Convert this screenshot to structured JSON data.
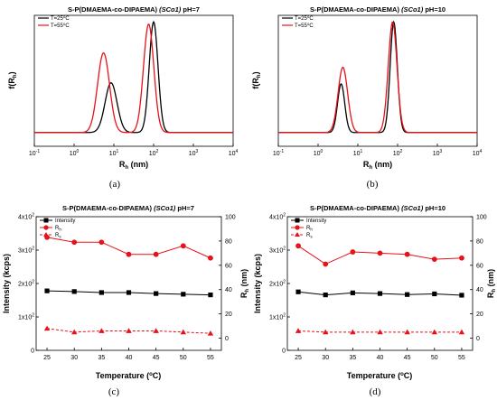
{
  "colors": {
    "black": "#000000",
    "red": "#e8111a"
  },
  "captions": [
    "(a)",
    "(b)",
    "(c)",
    "(d)"
  ],
  "chart_data": [
    {
      "type": "line",
      "title_prefix": "S-P(DMAEMA-co-DIPAEMA) ",
      "title_italic": "(SCo1)",
      "title_suffix": " pH=7",
      "xlabel": "R",
      "xlabel_sub": "h",
      "xlabel_unit": " (nm)",
      "ylabel": "f(R",
      "ylabel_sub": "h",
      "ylabel_end": ")",
      "x_scale": "log",
      "xlim": [
        0.1,
        10000
      ],
      "x_ticks": [
        {
          "v": 0.1,
          "b": "10",
          "e": "-1"
        },
        {
          "v": 1,
          "b": "10",
          "e": "0"
        },
        {
          "v": 10,
          "b": "10",
          "e": "1"
        },
        {
          "v": 100,
          "b": "10",
          "e": "2"
        },
        {
          "v": 1000,
          "b": "10",
          "e": "3"
        },
        {
          "v": 10000,
          "b": "10",
          "e": "4"
        }
      ],
      "y_ticks_shown": false,
      "legend": "top-left",
      "series": [
        {
          "name": "T=25",
          "name_sup": "o",
          "name_end": "C",
          "color": "#000000",
          "peaks": [
            {
              "center": 8.5,
              "height": 0.45,
              "width": 0.15
            },
            {
              "center": 100,
              "height": 1.0,
              "width": 0.11
            }
          ]
        },
        {
          "name": "T=55",
          "name_sup": "o",
          "name_end": "C",
          "color": "#e8111a",
          "peaks": [
            {
              "center": 5.5,
              "height": 0.72,
              "width": 0.15
            },
            {
              "center": 75,
              "height": 0.98,
              "width": 0.13
            }
          ]
        }
      ]
    },
    {
      "type": "line",
      "title_prefix": "S-P(DMAEMA-co-DIPAEMA) ",
      "title_italic": "(SCo1)",
      "title_suffix": " pH=10",
      "xlabel": "R",
      "xlabel_sub": "h",
      "xlabel_unit": " (nm)",
      "ylabel": "f(R",
      "ylabel_sub": "h",
      "ylabel_end": ")",
      "x_scale": "log",
      "xlim": [
        0.1,
        10000
      ],
      "x_ticks": [
        {
          "v": 0.1,
          "b": "10",
          "e": "-1"
        },
        {
          "v": 1,
          "b": "10",
          "e": "0"
        },
        {
          "v": 10,
          "b": "10",
          "e": "1"
        },
        {
          "v": 100,
          "b": "10",
          "e": "2"
        },
        {
          "v": 1000,
          "b": "10",
          "e": "3"
        },
        {
          "v": 10000,
          "b": "10",
          "e": "4"
        }
      ],
      "y_ticks_shown": false,
      "legend": "top-left",
      "series": [
        {
          "name": "T=25",
          "name_sup": "o",
          "name_end": "C",
          "color": "#000000",
          "peaks": [
            {
              "center": 3.8,
              "height": 0.44,
              "width": 0.09
            },
            {
              "center": 80,
              "height": 1.0,
              "width": 0.09
            }
          ]
        },
        {
          "name": "T=55",
          "name_sup": "o",
          "name_end": "C",
          "color": "#e8111a",
          "peaks": [
            {
              "center": 4.2,
              "height": 0.59,
              "width": 0.12
            },
            {
              "center": 75,
              "height": 1.0,
              "width": 0.11
            }
          ]
        }
      ]
    },
    {
      "type": "line",
      "title_prefix": "S-P(DMAEMA-co-DIPAEMA) ",
      "title_italic": "(SCo1)",
      "title_suffix": " pH=7",
      "xlabel": "Temperature (",
      "xlabel_sup": "o",
      "xlabel_end": "C)",
      "ylabel": "Intensity (kcps)",
      "y2label": "R",
      "y2label_sub": "h",
      "y2label_unit": " (nm)",
      "x": [
        25,
        30,
        35,
        40,
        45,
        50,
        55
      ],
      "xlim": [
        23,
        57
      ],
      "ylim": [
        0,
        400
      ],
      "y_ticks": [
        {
          "v": 0,
          "b": "0",
          "e": ""
        },
        {
          "v": 100,
          "b": "1x10",
          "e": "2"
        },
        {
          "v": 200,
          "b": "2x10",
          "e": "2"
        },
        {
          "v": 300,
          "b": "3x10",
          "e": "2"
        },
        {
          "v": 400,
          "b": "4x10",
          "e": "2"
        }
      ],
      "y2lim": [
        -10,
        100
      ],
      "y2_ticks": [
        0,
        20,
        40,
        60,
        80,
        100
      ],
      "legend": "top-left",
      "series": [
        {
          "name": "Intensity",
          "axis": "left",
          "marker": "square",
          "color": "#000000",
          "dashed": false,
          "values": [
            178,
            176,
            173,
            173,
            170,
            168,
            166
          ]
        },
        {
          "name": "R",
          "name_sub": "h",
          "axis": "right",
          "marker": "circle",
          "color": "#e8111a",
          "dashed": false,
          "values": [
            83,
            79,
            79,
            69,
            69,
            76,
            66
          ]
        },
        {
          "name": "R",
          "name_sub": "s",
          "axis": "right",
          "marker": "triangle",
          "color": "#e8111a",
          "dashed": true,
          "values": [
            8,
            5,
            6,
            6,
            6,
            5,
            4
          ]
        }
      ]
    },
    {
      "type": "line",
      "title_prefix": "S-P(DMAEMA-co-DIPAEMA) ",
      "title_italic": "(SCo1)",
      "title_suffix": " pH=10",
      "xlabel": "Temperature (",
      "xlabel_sup": "o",
      "xlabel_end": "C)",
      "ylabel": "Intensity (kcps)",
      "y2label": "R",
      "y2label_sub": "h",
      "y2label_unit": " (nm)",
      "x": [
        25,
        30,
        35,
        40,
        45,
        50,
        55
      ],
      "xlim": [
        23,
        57
      ],
      "ylim": [
        0,
        400
      ],
      "y_ticks": [
        {
          "v": 0,
          "b": "0",
          "e": ""
        },
        {
          "v": 100,
          "b": "1x10",
          "e": "2"
        },
        {
          "v": 200,
          "b": "2x10",
          "e": "2"
        },
        {
          "v": 300,
          "b": "3x10",
          "e": "2"
        },
        {
          "v": 400,
          "b": "4x10",
          "e": "2"
        }
      ],
      "y2lim": [
        -10,
        100
      ],
      "y2_ticks": [
        0,
        20,
        40,
        60,
        80,
        100
      ],
      "legend": "top-left",
      "series": [
        {
          "name": "Intensity",
          "axis": "left",
          "marker": "square",
          "color": "#000000",
          "dashed": false,
          "values": [
            175,
            166,
            172,
            170,
            167,
            169,
            165
          ]
        },
        {
          "name": "R",
          "name_sub": "h",
          "axis": "right",
          "marker": "circle",
          "color": "#e8111a",
          "dashed": false,
          "values": [
            76,
            61,
            71,
            70,
            69,
            65,
            66
          ]
        },
        {
          "name": "R",
          "name_sub": "s",
          "axis": "right",
          "marker": "triangle",
          "color": "#e8111a",
          "dashed": true,
          "values": [
            6,
            5,
            5,
            5,
            5,
            5,
            5
          ]
        }
      ]
    }
  ]
}
